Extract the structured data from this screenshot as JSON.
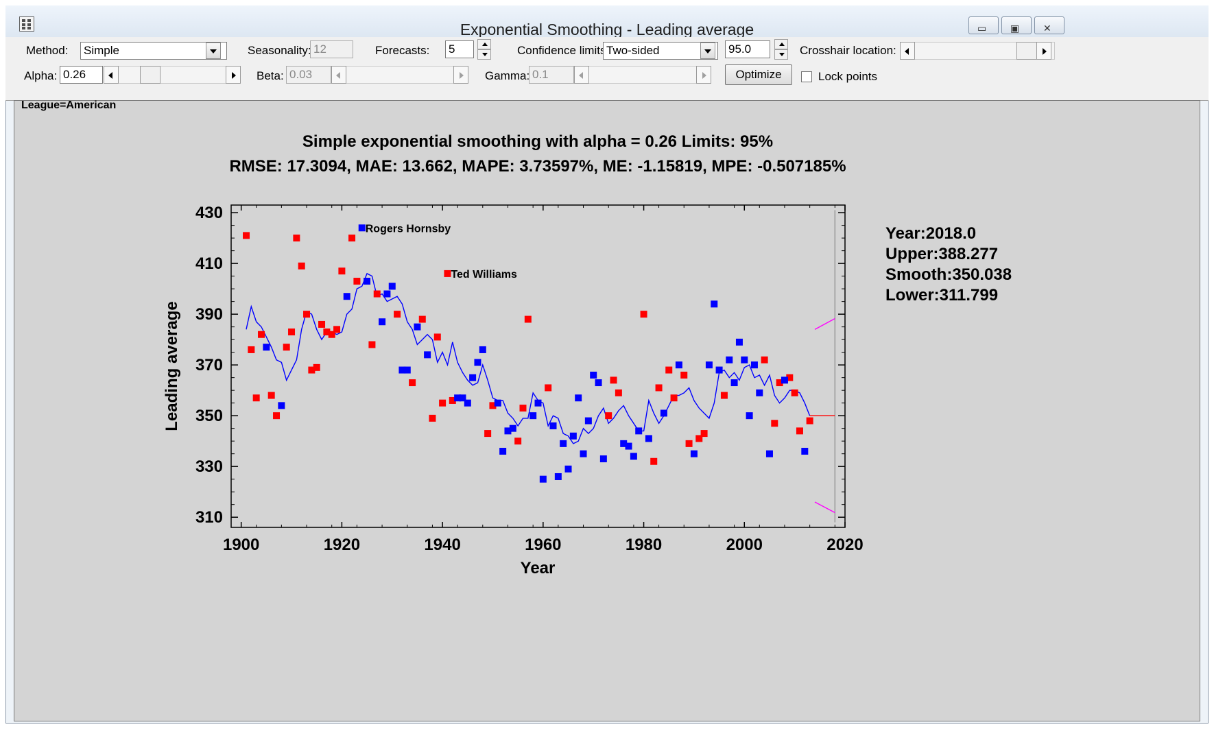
{
  "window": {
    "title": "Exponential Smoothing - Leading average",
    "minimize_glyph": "▭",
    "restore_glyph": "▣",
    "close_glyph": "✕"
  },
  "toolbar": {
    "method_label": "Method:",
    "method_value": "Simple",
    "seasonality_label": "Seasonality:",
    "seasonality_value": "12",
    "forecasts_label": "Forecasts:",
    "forecasts_value": "5",
    "confidence_label": "Confidence limits:",
    "confidence_value": "Two-sided",
    "confidence_level": "95.0",
    "crosshair_label": "Crosshair location:",
    "alpha_label": "Alpha:",
    "alpha_value": "0.26",
    "beta_label": "Beta:",
    "beta_value": "0.03",
    "gamma_label": "Gamma:",
    "gamma_value": "0.1",
    "optimize_label": "Optimize",
    "lock_points_label": "Lock points"
  },
  "pane": {
    "group_label": "League=American"
  },
  "crosshair": {
    "year": "Year:2018.0",
    "upper": "Upper:388.277",
    "smooth": "Smooth:350.038",
    "lower": "Lower:311.799"
  },
  "chart_data": {
    "type": "scatter",
    "title": "Simple exponential smoothing with alpha = 0.26 Limits: 95%",
    "subtitle": "RMSE: 17.3094, MAE: 13.662, MAPE: 3.73597%, ME: -1.15819, MPE: -0.507185%",
    "xlabel": "Year",
    "ylabel": "Leading average",
    "xlim": [
      1898,
      2020
    ],
    "ylim": [
      306,
      433
    ],
    "xticks": [
      1900,
      1920,
      1940,
      1960,
      1980,
      2000,
      2020
    ],
    "yticks": [
      310,
      330,
      350,
      370,
      390,
      410,
      430
    ],
    "colors": {
      "red": "#ff0000",
      "blue": "#0000ff",
      "smooth": "#0000ff",
      "limits": "#ff00ff",
      "forecast": "#ff0000",
      "crosshair": "#999999"
    },
    "series": [
      {
        "color": "red",
        "points": [
          [
            1901,
            421
          ],
          [
            1902,
            376
          ],
          [
            1903,
            357
          ],
          [
            1904,
            382
          ],
          [
            1906,
            358
          ],
          [
            1907,
            350
          ],
          [
            1909,
            377
          ],
          [
            1910,
            383
          ],
          [
            1911,
            420
          ],
          [
            1912,
            409
          ],
          [
            1913,
            390
          ],
          [
            1914,
            368
          ],
          [
            1915,
            369
          ],
          [
            1916,
            386
          ],
          [
            1917,
            383
          ],
          [
            1918,
            382
          ],
          [
            1919,
            384
          ],
          [
            1920,
            407
          ],
          [
            1922,
            420
          ],
          [
            1923,
            403
          ],
          [
            1926,
            378
          ],
          [
            1927,
            398
          ],
          [
            1931,
            390
          ],
          [
            1934,
            363
          ],
          [
            1936,
            388
          ],
          [
            1938,
            349
          ],
          [
            1939,
            381
          ],
          [
            1940,
            355
          ],
          [
            1941,
            406
          ],
          [
            1942,
            356
          ],
          [
            1949,
            343
          ],
          [
            1950,
            354
          ],
          [
            1955,
            340
          ],
          [
            1956,
            353
          ],
          [
            1957,
            388
          ],
          [
            1961,
            361
          ],
          [
            1973,
            350
          ],
          [
            1974,
            364
          ],
          [
            1975,
            359
          ],
          [
            1980,
            390
          ],
          [
            1982,
            332
          ],
          [
            1983,
            361
          ],
          [
            1985,
            368
          ],
          [
            1986,
            357
          ],
          [
            1988,
            366
          ],
          [
            1989,
            339
          ],
          [
            1991,
            341
          ],
          [
            1992,
            343
          ],
          [
            1996,
            358
          ],
          [
            2004,
            372
          ],
          [
            2006,
            347
          ],
          [
            2007,
            363
          ],
          [
            2009,
            365
          ],
          [
            2010,
            359
          ],
          [
            2011,
            344
          ],
          [
            2013,
            348
          ]
        ]
      },
      {
        "color": "blue",
        "points": [
          [
            1905,
            377
          ],
          [
            1908,
            354
          ],
          [
            1921,
            397
          ],
          [
            1924,
            424
          ],
          [
            1925,
            403
          ],
          [
            1928,
            387
          ],
          [
            1929,
            398
          ],
          [
            1930,
            401
          ],
          [
            1932,
            368
          ],
          [
            1933,
            368
          ],
          [
            1935,
            385
          ],
          [
            1937,
            374
          ],
          [
            1943,
            357
          ],
          [
            1944,
            357
          ],
          [
            1945,
            355
          ],
          [
            1946,
            365
          ],
          [
            1947,
            371
          ],
          [
            1948,
            376
          ],
          [
            1951,
            355
          ],
          [
            1952,
            336
          ],
          [
            1953,
            344
          ],
          [
            1954,
            345
          ],
          [
            1958,
            350
          ],
          [
            1959,
            355
          ],
          [
            1960,
            325
          ],
          [
            1962,
            346
          ],
          [
            1963,
            326
          ],
          [
            1964,
            339
          ],
          [
            1965,
            329
          ],
          [
            1966,
            342
          ],
          [
            1967,
            357
          ],
          [
            1968,
            335
          ],
          [
            1969,
            348
          ],
          [
            1970,
            366
          ],
          [
            1971,
            363
          ],
          [
            1972,
            333
          ],
          [
            1976,
            339
          ],
          [
            1977,
            338
          ],
          [
            1978,
            334
          ],
          [
            1979,
            344
          ],
          [
            1981,
            341
          ],
          [
            1984,
            351
          ],
          [
            1987,
            370
          ],
          [
            1990,
            335
          ],
          [
            1993,
            370
          ],
          [
            1994,
            394
          ],
          [
            1995,
            368
          ],
          [
            1997,
            372
          ],
          [
            1998,
            363
          ],
          [
            1999,
            379
          ],
          [
            2000,
            372
          ],
          [
            2001,
            350
          ],
          [
            2002,
            370
          ],
          [
            2003,
            359
          ],
          [
            2005,
            335
          ],
          [
            2008,
            364
          ],
          [
            2012,
            336
          ]
        ]
      }
    ],
    "annotations": [
      {
        "text": "Rogers Hornsby",
        "x": 1924,
        "y": 424
      },
      {
        "text": "Ted Williams",
        "x": 1941,
        "y": 406
      }
    ],
    "smooth_line": [
      [
        1901,
        384
      ],
      [
        1902,
        393
      ],
      [
        1903,
        387
      ],
      [
        1904,
        385
      ],
      [
        1905,
        381
      ],
      [
        1906,
        377
      ],
      [
        1907,
        372
      ],
      [
        1908,
        371
      ],
      [
        1909,
        364
      ],
      [
        1910,
        368
      ],
      [
        1911,
        372
      ],
      [
        1912,
        384
      ],
      [
        1913,
        391
      ],
      [
        1914,
        390
      ],
      [
        1915,
        384
      ],
      [
        1916,
        380
      ],
      [
        1917,
        383
      ],
      [
        1918,
        383
      ],
      [
        1919,
        382
      ],
      [
        1920,
        383
      ],
      [
        1921,
        390
      ],
      [
        1922,
        392
      ],
      [
        1923,
        400
      ],
      [
        1924,
        401
      ],
      [
        1925,
        406
      ],
      [
        1926,
        405
      ],
      [
        1927,
        397
      ],
      [
        1928,
        398
      ],
      [
        1929,
        395
      ],
      [
        1930,
        396
      ],
      [
        1931,
        397
      ],
      [
        1932,
        394
      ],
      [
        1933,
        387
      ],
      [
        1934,
        384
      ],
      [
        1935,
        378
      ],
      [
        1936,
        380
      ],
      [
        1937,
        382
      ],
      [
        1938,
        380
      ],
      [
        1939,
        371
      ],
      [
        1940,
        375
      ],
      [
        1941,
        370
      ],
      [
        1942,
        379
      ],
      [
        1943,
        371
      ],
      [
        1944,
        367
      ],
      [
        1945,
        364
      ],
      [
        1946,
        362
      ],
      [
        1947,
        363
      ],
      [
        1948,
        370
      ],
      [
        1949,
        364
      ],
      [
        1950,
        357
      ],
      [
        1951,
        356
      ],
      [
        1952,
        356
      ],
      [
        1953,
        351
      ],
      [
        1954,
        349
      ],
      [
        1955,
        346
      ],
      [
        1956,
        349
      ],
      [
        1957,
        349
      ],
      [
        1958,
        359
      ],
      [
        1959,
        356
      ],
      [
        1960,
        355
      ],
      [
        1961,
        346
      ],
      [
        1962,
        350
      ],
      [
        1963,
        349
      ],
      [
        1964,
        343
      ],
      [
        1965,
        342
      ],
      [
        1966,
        339
      ],
      [
        1967,
        340
      ],
      [
        1968,
        345
      ],
      [
        1969,
        343
      ],
      [
        1970,
        345
      ],
      [
        1971,
        350
      ],
      [
        1972,
        353
      ],
      [
        1973,
        347
      ],
      [
        1974,
        349
      ],
      [
        1975,
        352
      ],
      [
        1976,
        354
      ],
      [
        1977,
        350
      ],
      [
        1978,
        347
      ],
      [
        1979,
        344
      ],
      [
        1980,
        344
      ],
      [
        1981,
        356
      ],
      [
        1982,
        351
      ],
      [
        1983,
        347
      ],
      [
        1984,
        350
      ],
      [
        1985,
        354
      ],
      [
        1986,
        358
      ],
      [
        1987,
        358
      ],
      [
        1988,
        359
      ],
      [
        1989,
        361
      ],
      [
        1990,
        356
      ],
      [
        1991,
        353
      ],
      [
        1992,
        351
      ],
      [
        1993,
        349
      ],
      [
        1994,
        355
      ],
      [
        1995,
        367
      ],
      [
        1996,
        368
      ],
      [
        1997,
        365
      ],
      [
        1998,
        367
      ],
      [
        1999,
        364
      ],
      [
        2000,
        369
      ],
      [
        2001,
        370
      ],
      [
        2002,
        365
      ],
      [
        2003,
        366
      ],
      [
        2004,
        362
      ],
      [
        2005,
        366
      ],
      [
        2006,
        358
      ],
      [
        2007,
        355
      ],
      [
        2008,
        357
      ],
      [
        2009,
        360
      ],
      [
        2010,
        360
      ],
      [
        2011,
        359
      ],
      [
        2012,
        355
      ],
      [
        2013,
        350
      ]
    ],
    "forecast": {
      "x_start": 2013,
      "x_end": 2018,
      "smooth": 350.038
    },
    "limits": {
      "upper": [
        [
          2014,
          384
        ],
        [
          2018,
          388.277
        ]
      ],
      "lower": [
        [
          2014,
          316
        ],
        [
          2018,
          311.799
        ]
      ]
    },
    "crosshair_x": 2018
  }
}
